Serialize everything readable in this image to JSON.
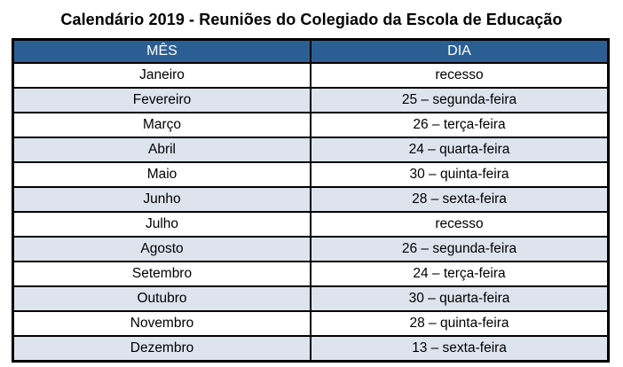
{
  "title": "Calendário 2019 - Reuniões do Colegiado da Escola de Educação",
  "table": {
    "headers": {
      "month": "MÊS",
      "day": "DIA"
    },
    "rows": [
      {
        "month": "Janeiro",
        "day": "recesso"
      },
      {
        "month": "Fevereiro",
        "day": "25 – segunda-feira"
      },
      {
        "month": "Março",
        "day": "26 – terça-feira"
      },
      {
        "month": "Abril",
        "day": "24 – quarta-feira"
      },
      {
        "month": "Maio",
        "day": "30 – quinta-feira"
      },
      {
        "month": "Junho",
        "day": "28 – sexta-feira"
      },
      {
        "month": "Julho",
        "day": "recesso"
      },
      {
        "month": "Agosto",
        "day": "26 – segunda-feira"
      },
      {
        "month": "Setembro",
        "day": "24 – terça-feira"
      },
      {
        "month": "Outubro",
        "day": "30 – quarta-feira"
      },
      {
        "month": "Novembro",
        "day": "28 – quinta-feira"
      },
      {
        "month": "Dezembro",
        "day": "13 – sexta-feira"
      }
    ]
  },
  "colors": {
    "header_bg": "#2B5F94",
    "header_text": "#FFFFFF",
    "row_bg": "#FFFFFF",
    "row_alt_bg": "#DDE4EE",
    "border": "#000000",
    "title_text": "#000000"
  }
}
